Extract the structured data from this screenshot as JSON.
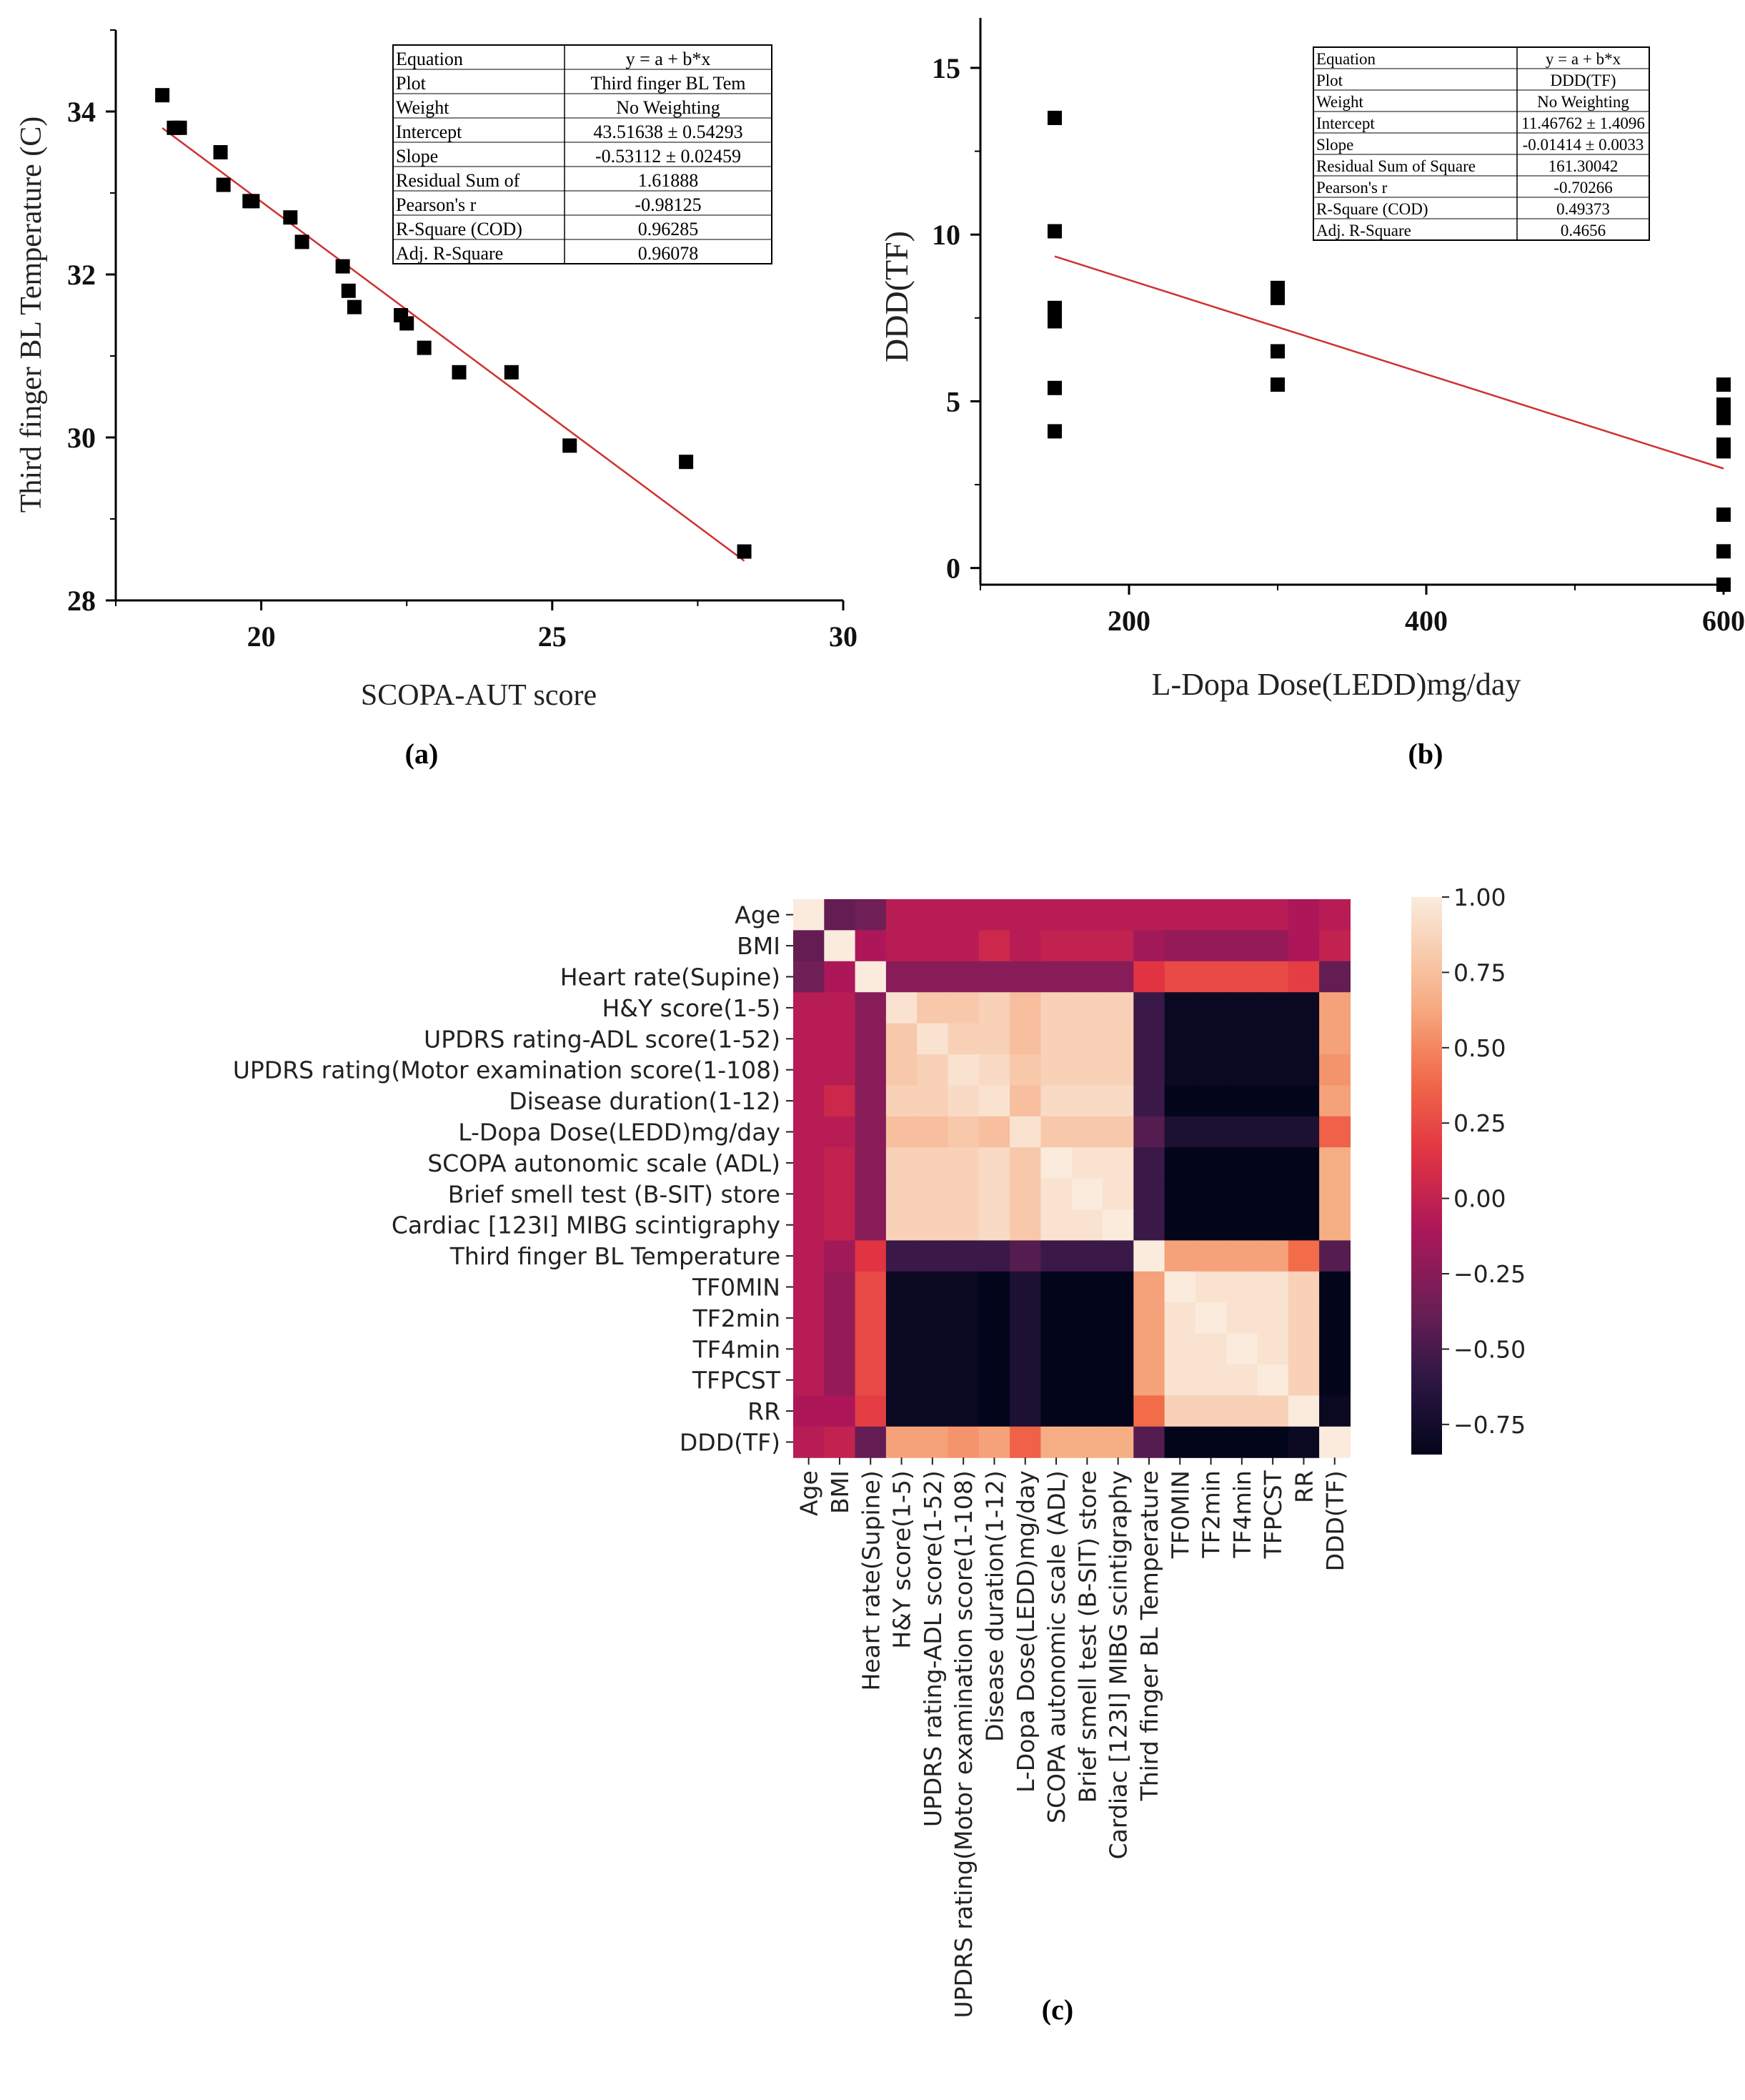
{
  "chart_data": [
    {
      "type": "scatter",
      "panel_label": "(a)",
      "xlabel": "SCOPA-AUT score",
      "ylabel": "Third finger BL Temperature (C)",
      "xlim": [
        17.5,
        30
      ],
      "ylim": [
        28,
        35
      ],
      "x_ticks": [
        20,
        25,
        30
      ],
      "y_ticks": [
        28,
        30,
        32,
        34
      ],
      "points": [
        [
          18.3,
          34.2
        ],
        [
          18.5,
          33.8
        ],
        [
          18.6,
          33.8
        ],
        [
          19.3,
          33.5
        ],
        [
          19.35,
          33.1
        ],
        [
          19.8,
          32.9
        ],
        [
          19.85,
          32.9
        ],
        [
          20.5,
          32.7
        ],
        [
          20.7,
          32.4
        ],
        [
          21.4,
          32.1
        ],
        [
          21.5,
          31.8
        ],
        [
          21.6,
          31.6
        ],
        [
          22.4,
          31.5
        ],
        [
          22.5,
          31.4
        ],
        [
          22.8,
          31.1
        ],
        [
          23.4,
          30.8
        ],
        [
          24.3,
          30.8
        ],
        [
          25.3,
          29.9
        ],
        [
          27.3,
          29.7
        ],
        [
          28.3,
          28.6
        ]
      ],
      "fit": {
        "intercept": 43.51638,
        "slope": -0.53112,
        "x_range": [
          18.3,
          28.3
        ],
        "color": "#d03030"
      },
      "stats_table": [
        [
          "Equation",
          "y = a + b*x"
        ],
        [
          "Plot",
          "Third finger BL Tem"
        ],
        [
          "Weight",
          "No Weighting"
        ],
        [
          "Intercept",
          "43.51638 ± 0.54293"
        ],
        [
          "Slope",
          "-0.53112 ± 0.02459"
        ],
        [
          "Residual Sum of",
          "1.61888"
        ],
        [
          "Pearson's r",
          "-0.98125"
        ],
        [
          "R-Square (COD)",
          "0.96285"
        ],
        [
          "Adj. R-Square",
          "0.96078"
        ]
      ]
    },
    {
      "type": "scatter",
      "panel_label": "(b)",
      "xlabel": "L-Dopa Dose(LEDD)mg/day",
      "ylabel": "DDD(TF)",
      "xlim": [
        100,
        600
      ],
      "ylim": [
        -0.5,
        16.5
      ],
      "x_ticks": [
        200,
        400,
        600
      ],
      "y_ticks": [
        0,
        5,
        10,
        15
      ],
      "points": [
        [
          150,
          13.5
        ],
        [
          150,
          10.1
        ],
        [
          150,
          7.8
        ],
        [
          150,
          7.4
        ],
        [
          150,
          5.4
        ],
        [
          150,
          4.1
        ],
        [
          300,
          8.4
        ],
        [
          300,
          8.1
        ],
        [
          300,
          6.5
        ],
        [
          300,
          5.5
        ],
        [
          600,
          5.5
        ],
        [
          600,
          4.9
        ],
        [
          600,
          4.5
        ],
        [
          600,
          3.7
        ],
        [
          600,
          3.5
        ],
        [
          600,
          1.6
        ],
        [
          600,
          0.5
        ],
        [
          600,
          -0.5
        ]
      ],
      "fit": {
        "intercept": 11.46762,
        "slope": -0.01414,
        "x_range": [
          150,
          600
        ],
        "color": "#d03030"
      },
      "stats_table": [
        [
          "Equation",
          "y = a + b*x"
        ],
        [
          "Plot",
          "DDD(TF)"
        ],
        [
          "Weight",
          "No Weighting"
        ],
        [
          "Intercept",
          "11.46762 ± 1.4096"
        ],
        [
          "Slope",
          "-0.01414 ± 0.0033"
        ],
        [
          "Residual Sum of Square",
          "161.30042"
        ],
        [
          "Pearson's r",
          "-0.70266"
        ],
        [
          "R-Square (COD)",
          "0.49373"
        ],
        [
          "Adj. R-Square",
          "0.4656"
        ]
      ]
    },
    {
      "type": "heatmap",
      "panel_label": "(c)",
      "labels": [
        "Age",
        "BMI",
        "Heart rate(Supine)",
        "H&Y score(1-5)",
        "UPDRS rating-ADL score(1-52)",
        "UPDRS rating(Motor examination score(1-108)",
        "Disease duration(1-12)",
        "L-Dopa Dose(LEDD)mg/day",
        "SCOPA autonomic scale (ADL)",
        "Brief smell test (B-SIT) store",
        "Cardiac [123I] MIBG scintigraphy",
        "Third finger BL Temperature",
        "TF0MIN",
        "TF2min",
        "TF4min",
        "TFPCST",
        "RR",
        "DDD(TF)"
      ],
      "colorbar": {
        "min": -0.85,
        "max": 1.0,
        "ticks": [
          1.0,
          0.75,
          0.5,
          0.25,
          0.0,
          -0.25,
          -0.5,
          -0.75
        ],
        "tick_labels": [
          "1.00",
          "0.75",
          "0.50",
          "0.25",
          "0.00",
          "−0.25",
          "−0.50",
          "−0.75"
        ]
      },
      "matrix": [
        [
          1.0,
          -0.4,
          -0.35,
          -0.05,
          -0.05,
          -0.05,
          -0.05,
          -0.05,
          -0.05,
          -0.05,
          -0.05,
          -0.05,
          -0.05,
          -0.05,
          -0.05,
          -0.05,
          -0.1,
          -0.05
        ],
        [
          -0.4,
          1.0,
          -0.1,
          -0.05,
          -0.05,
          -0.05,
          0.05,
          -0.05,
          0.0,
          0.0,
          0.0,
          -0.15,
          -0.2,
          -0.2,
          -0.2,
          -0.2,
          -0.1,
          0.0
        ],
        [
          -0.35,
          -0.1,
          1.0,
          -0.25,
          -0.25,
          -0.25,
          -0.25,
          -0.25,
          -0.25,
          -0.25,
          -0.25,
          0.15,
          0.25,
          0.25,
          0.25,
          0.25,
          0.2,
          -0.4
        ],
        [
          -0.05,
          -0.05,
          -0.25,
          0.95,
          0.8,
          0.8,
          0.85,
          0.75,
          0.85,
          0.85,
          0.85,
          -0.55,
          -0.8,
          -0.8,
          -0.8,
          -0.8,
          -0.8,
          0.6
        ],
        [
          -0.05,
          -0.05,
          -0.25,
          0.8,
          0.95,
          0.85,
          0.85,
          0.75,
          0.85,
          0.85,
          0.85,
          -0.55,
          -0.8,
          -0.8,
          -0.8,
          -0.8,
          -0.8,
          0.6
        ],
        [
          -0.05,
          -0.05,
          -0.25,
          0.8,
          0.85,
          0.95,
          0.9,
          0.8,
          0.85,
          0.85,
          0.85,
          -0.55,
          -0.8,
          -0.8,
          -0.8,
          -0.8,
          -0.8,
          0.55
        ],
        [
          -0.05,
          0.05,
          -0.25,
          0.85,
          0.85,
          0.9,
          0.95,
          0.75,
          0.9,
          0.9,
          0.9,
          -0.55,
          -0.85,
          -0.85,
          -0.85,
          -0.85,
          -0.85,
          0.6
        ],
        [
          -0.05,
          -0.05,
          -0.25,
          0.75,
          0.75,
          0.8,
          0.75,
          0.95,
          0.8,
          0.8,
          0.8,
          -0.45,
          -0.7,
          -0.7,
          -0.7,
          -0.7,
          -0.7,
          0.35
        ],
        [
          -0.05,
          0.0,
          -0.25,
          0.85,
          0.85,
          0.85,
          0.9,
          0.8,
          1.0,
          0.95,
          0.95,
          -0.55,
          -0.85,
          -0.85,
          -0.85,
          -0.85,
          -0.85,
          0.65
        ],
        [
          -0.05,
          0.0,
          -0.25,
          0.85,
          0.85,
          0.85,
          0.9,
          0.8,
          0.95,
          1.0,
          0.95,
          -0.55,
          -0.85,
          -0.85,
          -0.85,
          -0.85,
          -0.85,
          0.65
        ],
        [
          -0.05,
          0.0,
          -0.25,
          0.85,
          0.85,
          0.85,
          0.9,
          0.8,
          0.95,
          0.95,
          1.0,
          -0.55,
          -0.85,
          -0.85,
          -0.85,
          -0.85,
          -0.85,
          0.65
        ],
        [
          -0.05,
          -0.15,
          0.15,
          -0.55,
          -0.55,
          -0.55,
          -0.55,
          -0.45,
          -0.55,
          -0.55,
          -0.55,
          1.0,
          0.6,
          0.6,
          0.6,
          0.6,
          0.4,
          -0.45
        ],
        [
          -0.05,
          -0.2,
          0.25,
          -0.8,
          -0.8,
          -0.8,
          -0.85,
          -0.7,
          -0.85,
          -0.85,
          -0.85,
          0.6,
          1.0,
          0.95,
          0.95,
          0.95,
          0.85,
          -0.85
        ],
        [
          -0.05,
          -0.2,
          0.25,
          -0.8,
          -0.8,
          -0.8,
          -0.85,
          -0.7,
          -0.85,
          -0.85,
          -0.85,
          0.6,
          0.95,
          1.0,
          0.95,
          0.95,
          0.85,
          -0.85
        ],
        [
          -0.05,
          -0.2,
          0.25,
          -0.8,
          -0.8,
          -0.8,
          -0.85,
          -0.7,
          -0.85,
          -0.85,
          -0.85,
          0.6,
          0.95,
          0.95,
          1.0,
          0.95,
          0.85,
          -0.85
        ],
        [
          -0.05,
          -0.2,
          0.25,
          -0.8,
          -0.8,
          -0.8,
          -0.85,
          -0.7,
          -0.85,
          -0.85,
          -0.85,
          0.6,
          0.95,
          0.95,
          0.95,
          1.0,
          0.85,
          -0.85
        ],
        [
          -0.1,
          -0.1,
          0.2,
          -0.8,
          -0.8,
          -0.8,
          -0.85,
          -0.7,
          -0.85,
          -0.85,
          -0.85,
          0.4,
          0.85,
          0.85,
          0.85,
          0.85,
          1.0,
          -0.8
        ],
        [
          -0.05,
          0.0,
          -0.4,
          0.6,
          0.6,
          0.55,
          0.6,
          0.35,
          0.65,
          0.65,
          0.65,
          -0.45,
          -0.85,
          -0.85,
          -0.85,
          -0.85,
          -0.8,
          1.0
        ]
      ]
    }
  ]
}
